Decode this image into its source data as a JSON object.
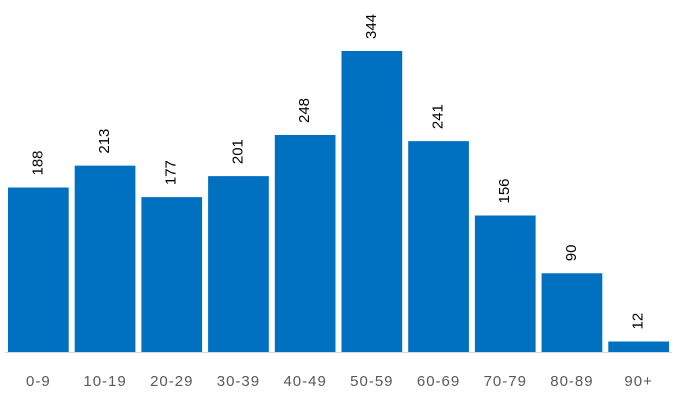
{
  "chart_data": {
    "type": "bar",
    "title": "",
    "xlabel": "",
    "ylabel": "",
    "categories": [
      "0-9",
      "10-19",
      "20-29",
      "30-39",
      "40-49",
      "50-59",
      "60-69",
      "70-79",
      "80-89",
      "90+"
    ],
    "values": [
      188,
      213,
      177,
      201,
      248,
      344,
      241,
      156,
      90,
      12
    ],
    "ylim": [
      0,
      344
    ],
    "grid": false,
    "legend": "none",
    "data_labels": true,
    "bar_color": "#0070C0",
    "axis_color": "#D9D9D9"
  }
}
